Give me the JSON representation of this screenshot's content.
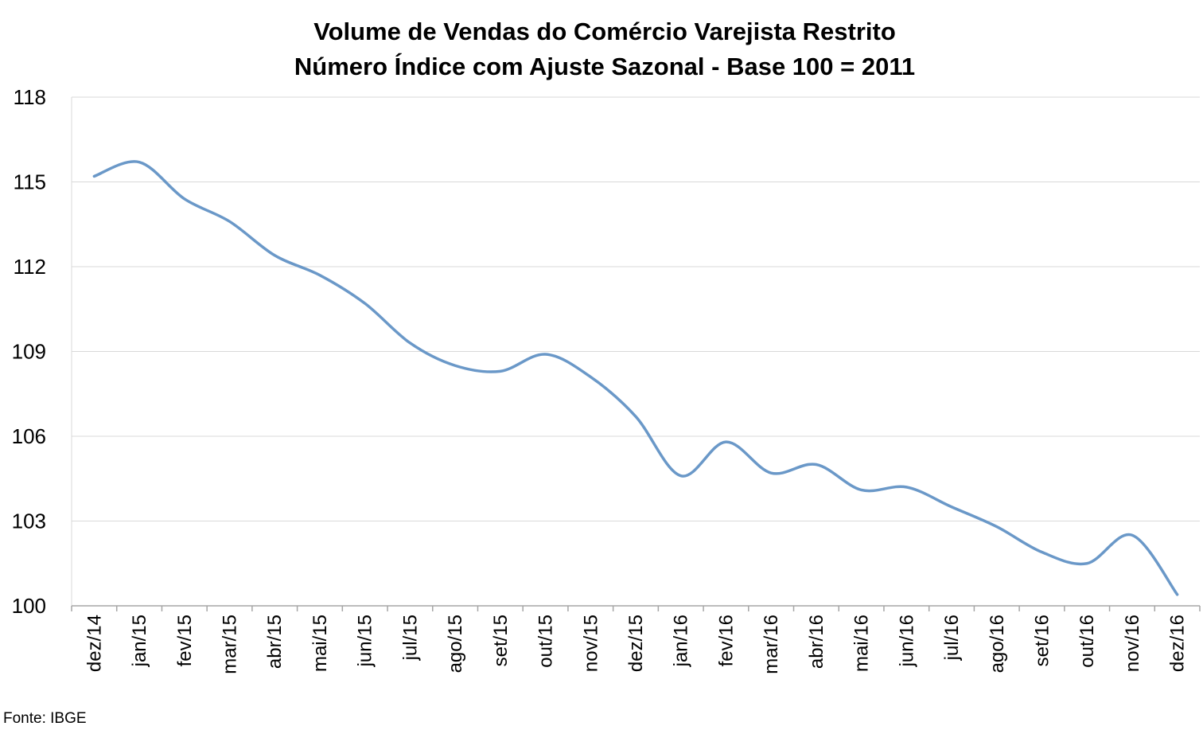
{
  "chart_data": {
    "type": "line",
    "title": "Volume de Vendas do Comércio Varejista Restrito",
    "subtitle": "Número Índice com Ajuste Sazonal - Base 100 = 2011",
    "xlabel": "",
    "ylabel": "",
    "categories": [
      "dez/14",
      "jan/15",
      "fev/15",
      "mar/15",
      "abr/15",
      "mai/15",
      "jun/15",
      "jul/15",
      "ago/15",
      "set/15",
      "out/15",
      "nov/15",
      "dez/15",
      "jan/16",
      "fev/16",
      "mar/16",
      "abr/16",
      "mai/16",
      "jun/16",
      "jul/16",
      "ago/16",
      "set/16",
      "out/16",
      "nov/16",
      "dez/16"
    ],
    "series": [
      {
        "values": [
          115.2,
          115.7,
          114.4,
          113.6,
          112.4,
          111.7,
          110.7,
          109.3,
          108.5,
          108.3,
          108.9,
          108.1,
          106.7,
          104.6,
          105.8,
          104.7,
          105.0,
          104.1,
          104.2,
          103.5,
          102.8,
          101.9,
          101.5,
          102.5,
          100.4
        ]
      }
    ],
    "yticks": [
      100,
      103,
      106,
      109,
      112,
      115,
      118
    ],
    "ylim": [
      100,
      118
    ],
    "grid": true,
    "legend": "none",
    "line_color": "#6a98c8",
    "source": "Fonte: IBGE"
  }
}
